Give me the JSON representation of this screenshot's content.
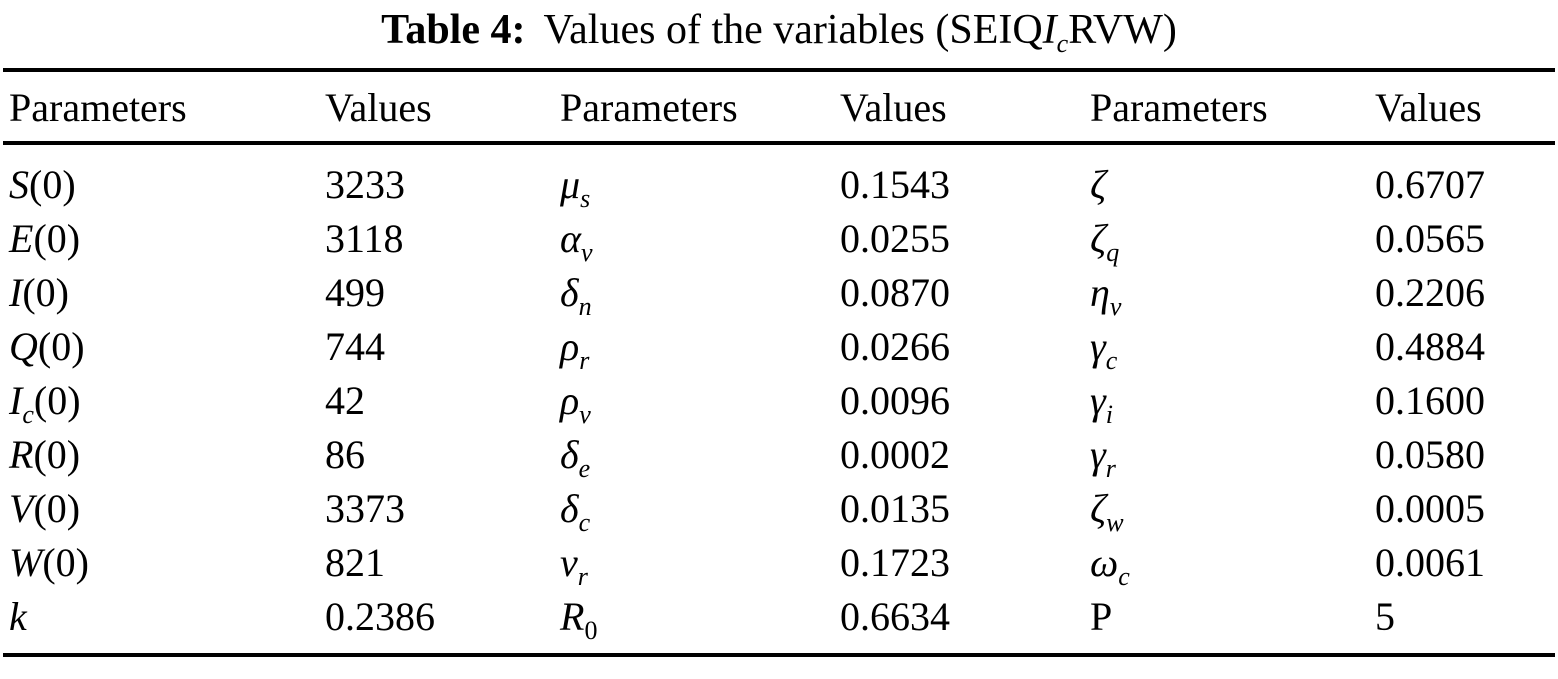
{
  "title": {
    "label": "Table 4:",
    "text_before": "Values of the variables (SEIQ",
    "var_main": "I",
    "var_sub": "c",
    "text_after": "RVW)"
  },
  "table": {
    "headers": [
      "Parameters",
      "Values",
      "Parameters",
      "Values",
      "Parameters",
      "Values"
    ],
    "rows": [
      {
        "cells": [
          {
            "param": {
              "base": "S",
              "sub": "",
              "suffix": "(0)",
              "italic": true
            },
            "value": "3233"
          },
          {
            "param": {
              "base": "μ",
              "sub": "s",
              "suffix": "",
              "italic": true
            },
            "value": "0.1543"
          },
          {
            "param": {
              "base": "ζ",
              "sub": "",
              "suffix": "",
              "italic": true
            },
            "value": "0.6707"
          }
        ]
      },
      {
        "cells": [
          {
            "param": {
              "base": "E",
              "sub": "",
              "suffix": "(0)",
              "italic": true
            },
            "value": "3118"
          },
          {
            "param": {
              "base": "α",
              "sub": "v",
              "suffix": "",
              "italic": true
            },
            "value": "0.0255"
          },
          {
            "param": {
              "base": "ζ",
              "sub": "q",
              "suffix": "",
              "italic": true
            },
            "value": "0.0565"
          }
        ]
      },
      {
        "cells": [
          {
            "param": {
              "base": "I",
              "sub": "",
              "suffix": "(0)",
              "italic": true
            },
            "value": "499"
          },
          {
            "param": {
              "base": "δ",
              "sub": "n",
              "suffix": "",
              "italic": true
            },
            "value": "0.0870"
          },
          {
            "param": {
              "base": "η",
              "sub": "v",
              "suffix": "",
              "italic": true
            },
            "value": "0.2206"
          }
        ]
      },
      {
        "cells": [
          {
            "param": {
              "base": "Q",
              "sub": "",
              "suffix": "(0)",
              "italic": true
            },
            "value": "744"
          },
          {
            "param": {
              "base": "ρ",
              "sub": "r",
              "suffix": "",
              "italic": true
            },
            "value": "0.0266"
          },
          {
            "param": {
              "base": "γ",
              "sub": "c",
              "suffix": "",
              "italic": true
            },
            "value": "0.4884"
          }
        ]
      },
      {
        "cells": [
          {
            "param": {
              "base": "I",
              "sub": "c",
              "suffix": "(0)",
              "italic": true
            },
            "value": "42"
          },
          {
            "param": {
              "base": "ρ",
              "sub": "v",
              "suffix": "",
              "italic": true
            },
            "value": "0.0096"
          },
          {
            "param": {
              "base": "γ",
              "sub": "i",
              "suffix": "",
              "italic": true
            },
            "value": "0.1600"
          }
        ]
      },
      {
        "cells": [
          {
            "param": {
              "base": "R",
              "sub": "",
              "suffix": "(0)",
              "italic": true
            },
            "value": "86"
          },
          {
            "param": {
              "base": "δ",
              "sub": "e",
              "suffix": "",
              "italic": true
            },
            "value": "0.0002"
          },
          {
            "param": {
              "base": "γ",
              "sub": "r",
              "suffix": "",
              "italic": true
            },
            "value": "0.0580"
          }
        ]
      },
      {
        "cells": [
          {
            "param": {
              "base": "V",
              "sub": "",
              "suffix": "(0)",
              "italic": true
            },
            "value": "3373"
          },
          {
            "param": {
              "base": "δ",
              "sub": "c",
              "suffix": "",
              "italic": true
            },
            "value": "0.0135"
          },
          {
            "param": {
              "base": "ζ",
              "sub": "w",
              "suffix": "",
              "italic": true
            },
            "value": "0.0005"
          }
        ]
      },
      {
        "cells": [
          {
            "param": {
              "base": "W",
              "sub": "",
              "suffix": "(0)",
              "italic": true
            },
            "value": "821"
          },
          {
            "param": {
              "base": "ν",
              "sub": "r",
              "suffix": "",
              "italic": true
            },
            "value": "0.1723"
          },
          {
            "param": {
              "base": "ω",
              "sub": "c",
              "suffix": "",
              "italic": true
            },
            "value": "0.0061"
          }
        ]
      },
      {
        "cells": [
          {
            "param": {
              "base": "k",
              "sub": "",
              "suffix": "",
              "italic": true
            },
            "value": "0.2386"
          },
          {
            "param": {
              "base": "R",
              "sub": "0",
              "sub_italic": false,
              "suffix": "",
              "italic": true
            },
            "value": "0.6634"
          },
          {
            "param": {
              "base": "P",
              "sub": "",
              "suffix": "",
              "italic": false
            },
            "value": "5"
          }
        ]
      }
    ]
  }
}
